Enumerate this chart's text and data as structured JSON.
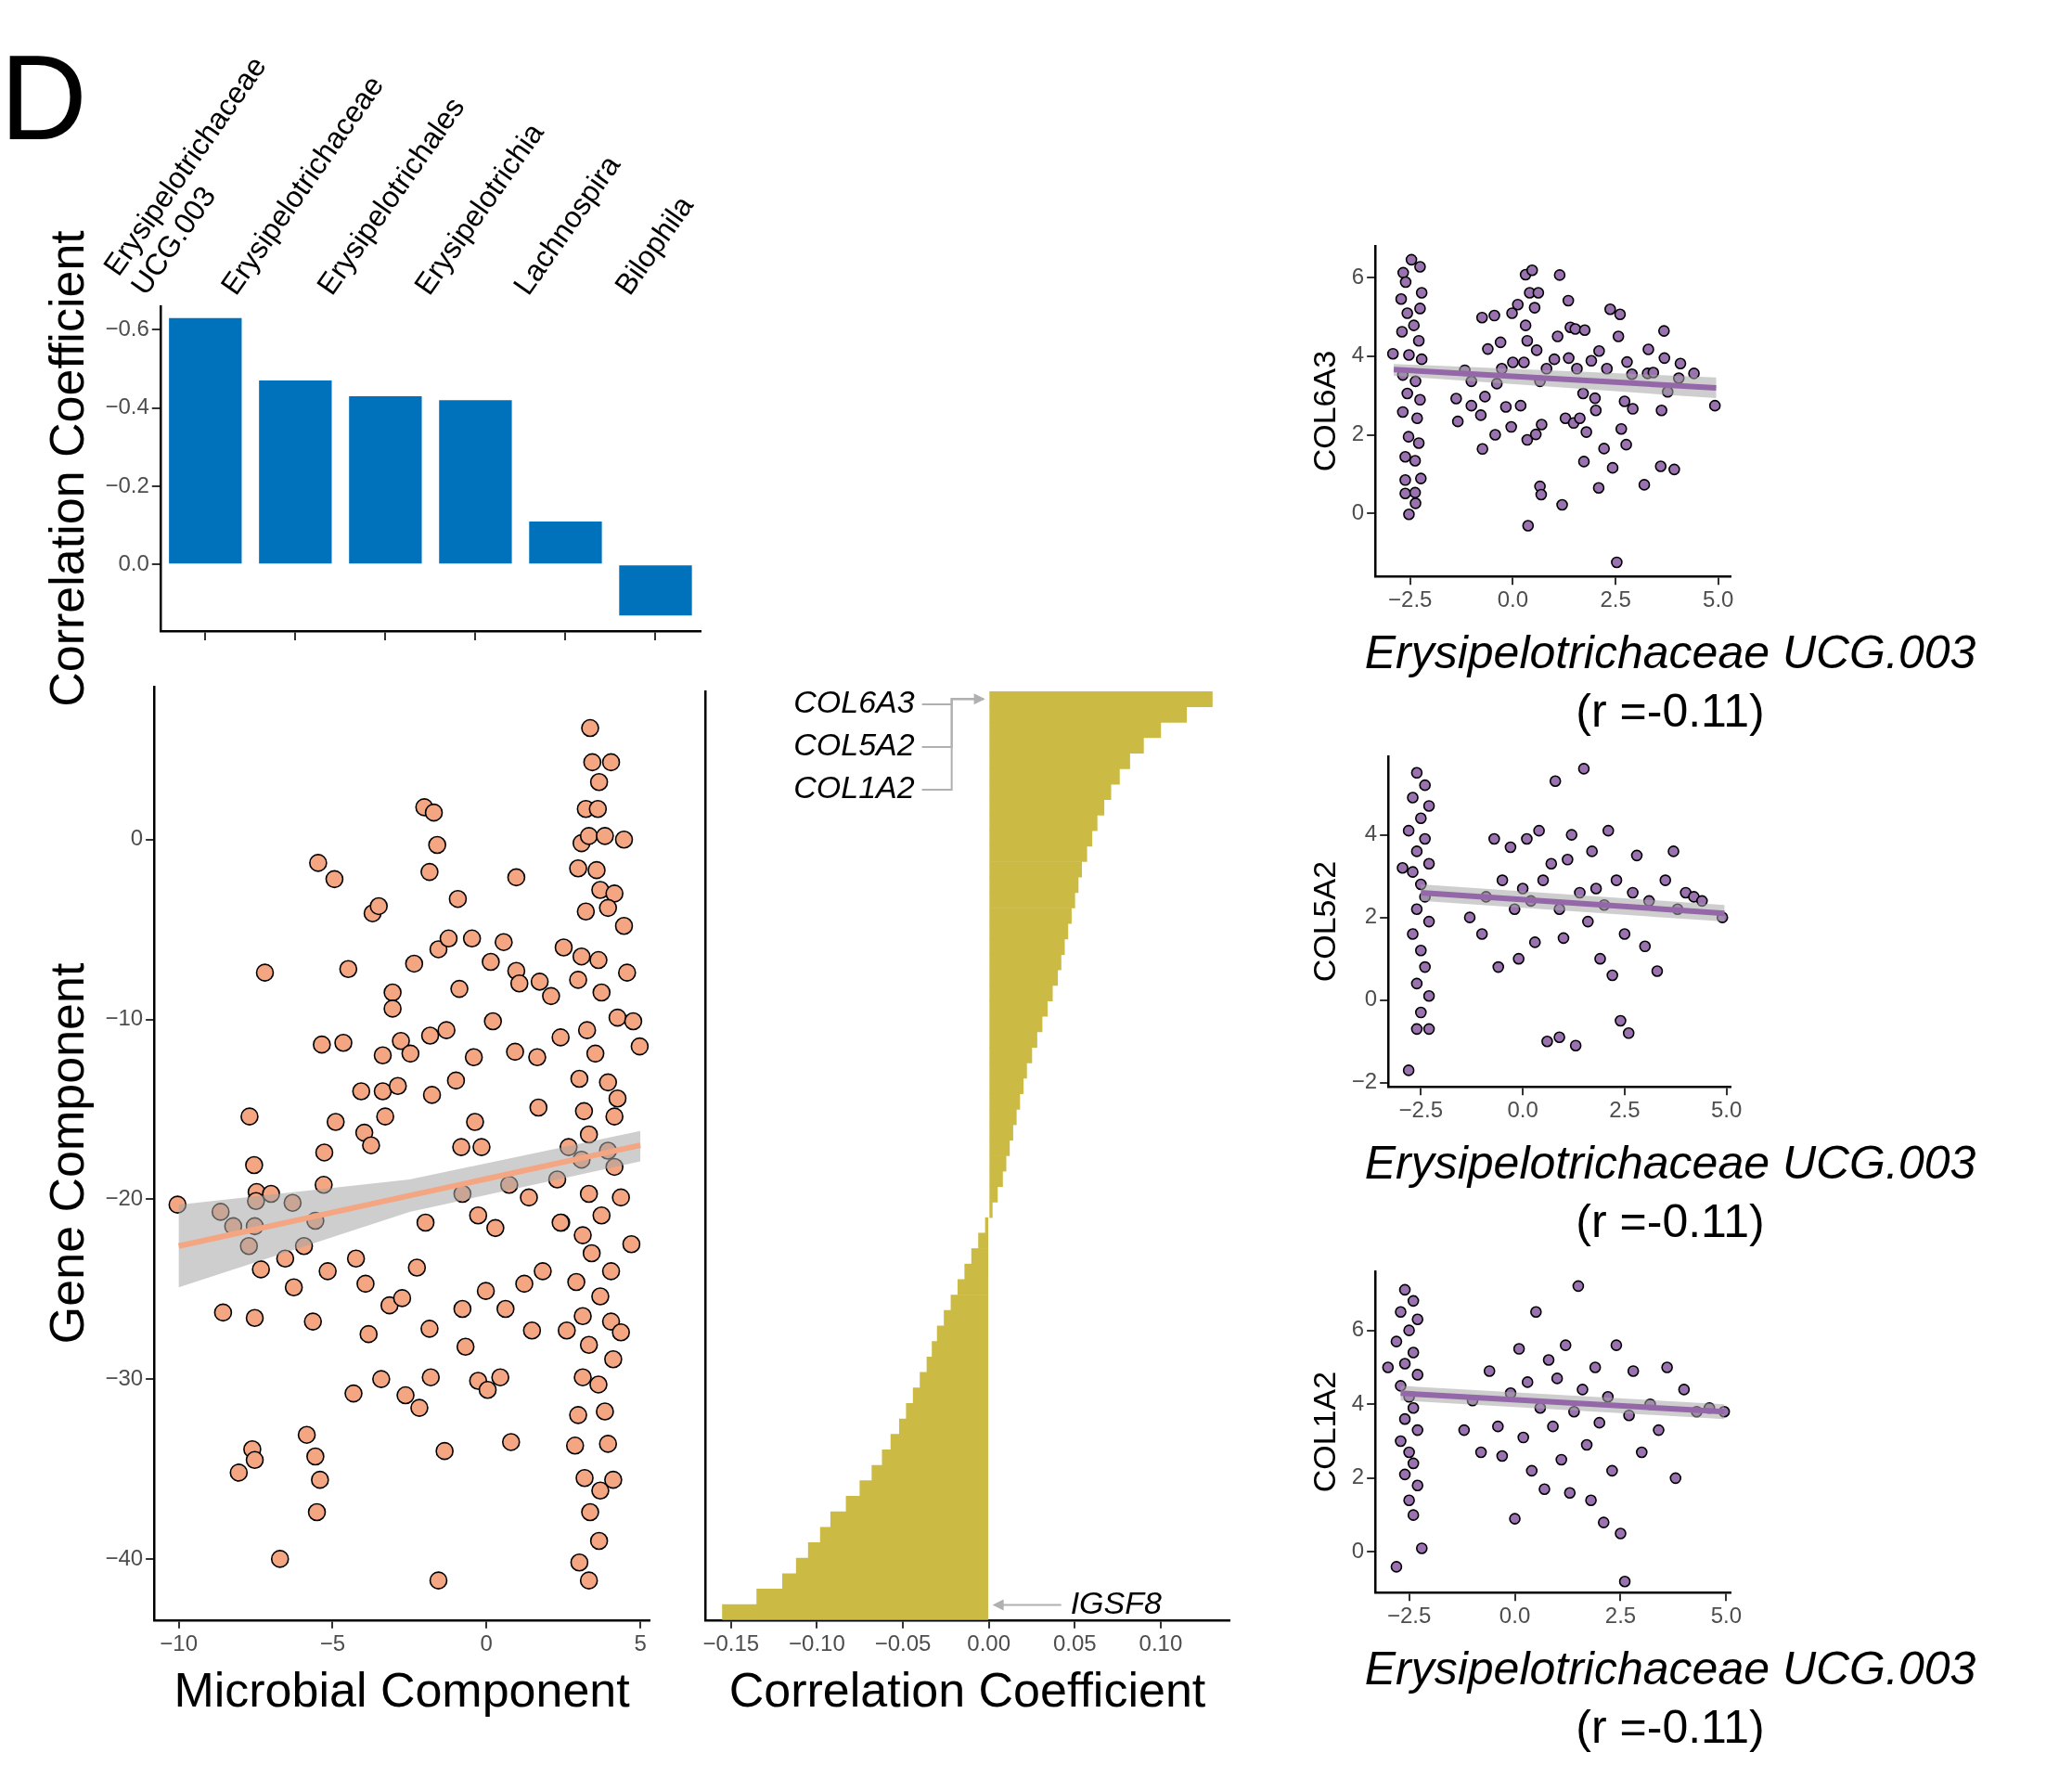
{
  "chart_data": [
    {
      "type": "bar",
      "ylabel": "Correlation Coefficient",
      "annotations": [
        "D"
      ],
      "categories": [
        "Erysipelotrichaceae UCG.003",
        "Erysipelotrichaceae",
        "Erysipelotrichales",
        "Erysipelotrichia",
        "Lachnospira",
        "Bilophila"
      ],
      "values": [
        -0.63,
        -0.47,
        -0.43,
        -0.42,
        -0.11,
        0.13
      ],
      "color": "#0072bb",
      "ylim": [
        0.17,
        -0.66
      ],
      "yticks": [
        {
          "value": -0.6,
          "label": "−0.6"
        },
        {
          "value": -0.4,
          "label": "−0.4"
        },
        {
          "value": -0.2,
          "label": "−0.2"
        },
        {
          "value": 0,
          "label": "0.0"
        }
      ]
    },
    {
      "type": "scatter",
      "xlabel": "Microbial Component",
      "ylabel": "Gene Component",
      "marker": "circle",
      "xlim": [
        -10.8,
        5.3
      ],
      "ylim": [
        -43.4,
        8.5
      ],
      "xticks": [
        {
          "value": -10,
          "label": "−10"
        },
        {
          "value": -5,
          "label": "−5"
        },
        0,
        5
      ],
      "yticks": [
        {
          "value": -40,
          "label": "−40"
        },
        {
          "value": -30,
          "label": "−30"
        },
        {
          "value": -20,
          "label": "−20"
        },
        {
          "value": -10,
          "label": "−10"
        },
        0
      ],
      "series": [
        {
          "color": "#f4a582",
          "x": [
            -10.04,
            -8.64,
            -8.23,
            -8.56,
            -8.05,
            -7.61,
            -7.53,
            -7.7,
            -7.55,
            -7.47,
            -7.49,
            -7.53,
            -7.72,
            -7.33,
            -7.53,
            -7.2,
            -7.0,
            -6.71,
            -6.54,
            -6.3,
            -6.26,
            -5.93,
            -5.84,
            -5.64,
            -5.56,
            -5.51,
            -5.41,
            -5.47,
            -4.94,
            -5.35,
            -4.65,
            -4.9,
            -5.27,
            -5.29,
            -5.16,
            -5.56,
            -4.49,
            -4.32,
            -4.24,
            -4.07,
            -3.97,
            -3.93,
            -3.83,
            -3.75,
            -3.7,
            -3.5,
            -3.42,
            -3.37,
            -3.37,
            -3.29,
            -3.05,
            -3.05,
            -3.15,
            -2.88,
            -2.78,
            -2.74,
            -2.63,
            -2.47,
            -2.35,
            -2.26,
            -2.18,
            -2.02,
            -1.71,
            -1.6,
            -1.85,
            -1.56,
            -1.83,
            -1.77,
            -1.98,
            -1.85,
            -1.81,
            -1.56,
            -1.36,
            -1.3,
            -1.23,
            -0.99,
            -0.93,
            -0.88,
            -0.82,
            -0.78,
            -0.78,
            -0.68,
            -0.47,
            -0.41,
            -0.37,
            -0.27,
            -0.27,
            -0.16,
            -0.02,
            0.04,
            0.14,
            0.21,
            0.29,
            0.45,
            0.56,
            0.62,
            0.74,
            0.8,
            0.97,
            0.97,
            0.93,
            1.07,
            1.23,
            1.38,
            1.48,
            1.65,
            1.69,
            1.73,
            1.83,
            2.1,
            2.41,
            2.51,
            2.43,
            2.61,
            3.37,
            3.44,
            4.05,
            3.66,
            3.23,
            3.62,
            3.09,
            3.33,
            3.85,
            4.47,
            2.98,
            3.58,
            3.7,
            4.16,
            3.23,
            3.95,
            4.47,
            3.09,
            3.64,
            4.57,
            2.98,
            3.74,
            4.26,
            4.77,
            3.27,
            4.98,
            3.54,
            3.02,
            3.95,
            4.26,
            3.17,
            4.16,
            3.33,
            3.95,
            2.67,
            3.09,
            4.16,
            2.3,
            4.37,
            3.33,
            3.74,
            2.41,
            3.13,
            4.71,
            3.42,
            4.05,
            2.92,
            3.7,
            3.13,
            4.05,
            4.37,
            3.33,
            4.12,
            3.13,
            3.64,
            2.98,
            3.85,
            2.88,
            3.95,
            3.19,
            4.12,
            3.7,
            3.37,
            3.66,
            3.02,
            3.33
          ],
          "values": [
            -20.3,
            -20.7,
            -21.5,
            -26.3,
            -35.2,
            -33.9,
            -34.5,
            -15.4,
            -18.1,
            -19.6,
            -20.1,
            -21.5,
            -22.6,
            -23.9,
            -26.6,
            -7.4,
            -19.7,
            -40.0,
            -23.3,
            -20.2,
            -24.9,
            -22.6,
            -33.1,
            -26.8,
            -34.3,
            -37.4,
            -35.6,
            -1.3,
            -2.2,
            -11.4,
            -11.3,
            -15.7,
            -17.4,
            -19.2,
            -24.0,
            -21.2,
            -7.2,
            -30.8,
            -23.3,
            -14.0,
            -16.3,
            -24.7,
            -27.5,
            -17.0,
            -4.1,
            -3.7,
            -30.0,
            -12.0,
            -14.0,
            -15.4,
            -8.5,
            -9.4,
            -25.9,
            -13.7,
            -11.2,
            -25.5,
            -30.9,
            -11.9,
            -6.9,
            -23.8,
            -31.6,
            1.8,
            1.5,
            -0.3,
            -1.8,
            -6.1,
            -10.9,
            -14.2,
            -21.3,
            -27.2,
            -29.9,
            -41.2,
            -34.0,
            -10.6,
            -5.5,
            -13.4,
            -3.3,
            -8.3,
            -17.1,
            -19.7,
            -26.1,
            -28.2,
            -5.5,
            -12.1,
            -15.7,
            -20.9,
            -30.1,
            -17.1,
            -25.1,
            -30.6,
            -6.8,
            -10.1,
            -21.6,
            -29.9,
            -5.7,
            -26.1,
            -19.2,
            -33.5,
            -2.1,
            -7.3,
            -11.8,
            -8.0,
            -24.7,
            -19.9,
            -27.3,
            -12.1,
            -14.9,
            -7.9,
            -24.0,
            -8.7,
            -11.0,
            -6.0,
            -21.3,
            -27.3,
            6.2,
            4.3,
            4.3,
            3.2,
            1.7,
            1.7,
            -0.2,
            0.2,
            0.2,
            0.0,
            -1.6,
            -1.7,
            -2.8,
            -3.0,
            -4.0,
            -3.8,
            -4.8,
            -6.5,
            -6.7,
            -7.4,
            -7.8,
            -8.5,
            -9.9,
            -10.1,
            -10.6,
            -11.5,
            -11.9,
            -13.3,
            -13.5,
            -14.4,
            -15.1,
            -15.4,
            -16.4,
            -17.3,
            -17.1,
            -17.8,
            -18.2,
            -18.9,
            -19.9,
            -19.7,
            -20.9,
            -21.3,
            -22.0,
            -22.5,
            -23.0,
            -24.0,
            -24.6,
            -25.4,
            -26.5,
            -26.8,
            -27.4,
            -28.1,
            -28.9,
            -29.9,
            -30.3,
            -32.0,
            -31.8,
            -33.7,
            -33.6,
            -35.5,
            -35.6,
            -36.2,
            -37.4,
            -39.0,
            -40.2,
            -41.2
          ]
        },
        {
          "type": "line",
          "marker": "none",
          "color": "#f4a582",
          "x": [
            -10,
            -2.5,
            5
          ],
          "values": [
            -22.6,
            -19.8,
            -17.0
          ],
          "lower": [
            -24.9,
            -20.7,
            -17.9
          ],
          "upper": [
            -20.3,
            -18.9,
            -16.2
          ]
        }
      ]
    },
    {
      "type": "bar",
      "orientation": "horizontal",
      "xlabel": "Correlation Coefficient",
      "annotations": [
        "COL6A3",
        "COL5A2",
        "COL1A2",
        "IGSF8"
      ],
      "color": "#cbbb45",
      "xlim": [
        -0.165,
        0.14
      ],
      "xticks": [
        {
          "value": -0.15,
          "label": "−0.15"
        },
        {
          "value": -0.1,
          "label": "−0.10"
        },
        {
          "value": -0.05,
          "label": "−0.05"
        },
        {
          "value": 0,
          "label": "0.00"
        },
        {
          "value": 0.05,
          "label": "0.05"
        },
        {
          "value": 0.1,
          "label": "0.10"
        }
      ],
      "categories": [
        null,
        null,
        null,
        null,
        null,
        null,
        null,
        null,
        null,
        null,
        null,
        null,
        null,
        null,
        null,
        null,
        null,
        null,
        null,
        null,
        null,
        null,
        null,
        null,
        null,
        null,
        null,
        null,
        null,
        null,
        null,
        null,
        null,
        null,
        null,
        null,
        null,
        null,
        null,
        null,
        null,
        null,
        null,
        null,
        null,
        null,
        null,
        null,
        null,
        null,
        null,
        null,
        null,
        null,
        null,
        null,
        null,
        null,
        null,
        null
      ],
      "values": [
        0.13,
        0.115,
        0.1,
        0.09,
        0.082,
        0.076,
        0.071,
        0.067,
        0.063,
        0.06,
        0.057,
        0.054,
        0.052,
        0.05,
        0.048,
        0.046,
        0.044,
        0.042,
        0.04,
        0.037,
        0.034,
        0.031,
        0.028,
        0.025,
        0.022,
        0.02,
        0.018,
        0.016,
        0.014,
        0.012,
        0.01,
        0.008,
        0.005,
        0.002,
        -0.002,
        -0.006,
        -0.01,
        -0.014,
        -0.018,
        -0.022,
        -0.026,
        -0.03,
        -0.033,
        -0.036,
        -0.04,
        -0.044,
        -0.048,
        -0.052,
        -0.057,
        -0.062,
        -0.068,
        -0.075,
        -0.083,
        -0.092,
        -0.098,
        -0.105,
        -0.112,
        -0.12,
        -0.135,
        -0.155
      ]
    },
    {
      "type": "scatter",
      "xlabel": "Erysipelotrichaceae UCG.003\n(r =-0.11)",
      "ylabel": "COL6A3",
      "marker": "circle",
      "xlim": [
        -3.35,
        5.3
      ],
      "ylim": [
        -1.6,
        6.8
      ],
      "xticks": [
        {
          "value": -2.5,
          "label": "−2.5"
        },
        {
          "value": 0,
          "label": "0.0"
        },
        2.5,
        {
          "value": 5,
          "label": "5.0"
        }
      ],
      "yticks": [
        0,
        2,
        4,
        6
      ],
      "series": [
        {
          "color": "#9b72b0",
          "x": [
            -2.47,
            -2.67,
            -2.26,
            -2.61,
            -2.22,
            -2.72,
            -2.26,
            -2.57,
            -2.41,
            -2.7,
            -2.29,
            -2.92,
            -2.53,
            -2.22,
            -2.68,
            -2.37,
            -2.57,
            -2.26,
            -2.68,
            -2.33,
            -2.54,
            -2.29,
            -2.62,
            -2.38,
            -2.62,
            -2.24,
            -2.62,
            -2.38,
            -2.37,
            -2.53,
            -1.38,
            -1.34,
            -1.17,
            -1.01,
            -1.01,
            -0.75,
            -0.78,
            -0.74,
            -0.61,
            -0.68,
            -0.45,
            -0.43,
            -0.39,
            -0.3,
            -0.27,
            -0.17,
            -0.02,
            -0.04,
            0.0,
            0.12,
            0.19,
            0.31,
            0.47,
            0.35,
            0.37,
            0.41,
            0.31,
            0.27,
            0.35,
            0.53,
            0.62,
            0.56,
            0.58,
            0.66,
            0.66,
            0.69,
            0.7,
            0.82,
            1.01,
            1.09,
            1.14,
            1.2,
            1.28,
            1.35,
            1.36,
            1.4,
            1.48,
            1.56,
            1.52,
            1.63,
            1.71,
            1.75,
            1.73,
            1.79,
            1.91,
            2.0,
            2.02,
            2.09,
            2.1,
            2.22,
            2.29,
            2.37,
            2.43,
            2.53,
            2.57,
            2.61,
            2.64,
            2.72,
            2.76,
            2.78,
            2.92,
            2.9,
            3.2,
            3.28,
            3.3,
            3.42,
            3.62,
            3.6,
            3.68,
            3.69,
            3.77,
            3.93,
            4.04,
            4.08,
            4.41,
            4.92
          ],
          "values": [
            6.45,
            6.12,
            6.27,
            5.88,
            5.61,
            5.45,
            5.21,
            5.09,
            4.78,
            4.62,
            4.39,
            4.06,
            4.03,
            3.92,
            3.52,
            3.36,
            3.05,
            2.89,
            2.58,
            2.42,
            1.95,
            1.79,
            1.44,
            1.34,
            0.85,
            0.89,
            0.51,
            0.53,
            0.26,
            -0.02,
            2.92,
            2.34,
            3.64,
            3.36,
            2.74,
            4.98,
            2.5,
            1.64,
            4.18,
            2.97,
            5.03,
            2.0,
            3.3,
            4.35,
            3.68,
            2.71,
            5.09,
            2.2,
            3.84,
            5.31,
            2.74,
            6.07,
            6.18,
            1.87,
            -0.31,
            5.61,
            4.78,
            3.84,
            4.39,
            5.23,
            5.61,
            2.01,
            4.15,
            3.36,
            0.69,
            0.48,
            2.26,
            3.68,
            3.92,
            4.5,
            6.06,
            0.22,
            2.42,
            5.41,
            3.95,
            4.73,
            2.3,
            3.68,
            4.69,
            2.42,
            3.05,
            4.66,
            1.32,
            2.07,
            3.88,
            2.93,
            2.62,
            0.65,
            4.13,
            1.65,
            3.68,
            5.19,
            1.16,
            -1.24,
            4.5,
            5.06,
            2.15,
            2.85,
            1.75,
            3.85,
            2.66,
            3.54,
            0.73,
            3.56,
            4.17,
            3.58,
            2.62,
            1.2,
            4.64,
            3.95,
            3.09,
            1.12,
            3.44,
            3.81,
            3.56,
            2.74
          ]
        },
        {
          "type": "line",
          "marker": "none",
          "color": "#9467a9",
          "x": [
            -2.9,
            4.95
          ],
          "values": [
            3.66,
            3.19
          ],
          "lower": [
            3.5,
            2.93
          ],
          "upper": [
            3.8,
            3.46
          ]
        }
      ]
    },
    {
      "type": "scatter",
      "xlabel": "Erysipelotrichaceae UCG.003\n(r =-0.11)",
      "ylabel": "COL5A2",
      "marker": "circle",
      "xlim": [
        -3.3,
        5.1
      ],
      "ylim": [
        -2.1,
        5.9
      ],
      "xticks": [
        {
          "value": -2.5,
          "label": "−2.5"
        },
        {
          "value": 0,
          "label": "0.0"
        },
        2.5,
        {
          "value": 5,
          "label": "5.0"
        }
      ],
      "yticks": [
        {
          "value": -2,
          "label": "−2"
        },
        0,
        2,
        4
      ],
      "series": [
        {
          "color": "#9b72b0",
          "x": [
            -2.6,
            -2.4,
            -2.7,
            -2.3,
            -2.5,
            -2.8,
            -2.4,
            -2.6,
            -2.3,
            -2.7,
            -2.5,
            -2.4,
            -2.6,
            -2.3,
            -2.7,
            -2.5,
            -2.4,
            -2.6,
            -2.3,
            -2.5,
            -2.6,
            -2.3,
            -2.8,
            -2.95,
            -1.3,
            -1.0,
            -0.9,
            -0.7,
            -0.6,
            -0.5,
            -0.3,
            -0.2,
            -0.1,
            0.0,
            0.1,
            0.2,
            0.3,
            0.4,
            0.5,
            0.6,
            0.7,
            0.8,
            0.9,
            0.9,
            1.0,
            1.1,
            1.2,
            1.3,
            1.4,
            1.5,
            1.6,
            1.7,
            1.8,
            1.9,
            2.0,
            2.1,
            2.2,
            2.3,
            2.4,
            2.5,
            2.6,
            2.7,
            2.8,
            3.0,
            3.1,
            3.3,
            3.5,
            3.7,
            3.8,
            4.0,
            4.2,
            4.4,
            4.9
          ],
          "values": [
            5.5,
            5.2,
            4.9,
            4.7,
            4.4,
            4.1,
            3.9,
            3.6,
            3.3,
            3.1,
            2.8,
            2.5,
            2.2,
            1.9,
            1.6,
            1.2,
            0.8,
            0.4,
            0.1,
            -0.3,
            -0.7,
            -0.7,
            -1.7,
            3.2,
            2.0,
            1.6,
            2.5,
            3.9,
            0.8,
            2.9,
            3.7,
            2.2,
            1.0,
            2.7,
            3.9,
            2.4,
            1.4,
            4.1,
            2.9,
            -1.0,
            3.3,
            5.3,
            -0.9,
            2.2,
            1.5,
            3.4,
            4.0,
            -1.1,
            2.6,
            5.6,
            1.9,
            3.6,
            2.7,
            1.0,
            2.3,
            4.1,
            0.6,
            2.9,
            -0.5,
            1.6,
            -0.8,
            2.6,
            3.5,
            1.3,
            2.4,
            0.7,
            2.9,
            3.6,
            2.2,
            2.6,
            2.5,
            2.4,
            2.0
          ]
        },
        {
          "type": "line",
          "marker": "none",
          "color": "#9467a9",
          "x": [
            -2.5,
            4.95
          ],
          "values": [
            2.6,
            2.1
          ],
          "lower": [
            2.4,
            1.9
          ],
          "upper": [
            2.8,
            2.3
          ]
        }
      ]
    },
    {
      "type": "scatter",
      "xlabel": "Erysipelotrichaceae UCG.003\n(r =-0.11)",
      "ylabel": "COL1A2",
      "marker": "circle",
      "xlim": [
        -3.3,
        5.1
      ],
      "ylim": [
        -1.1,
        7.6
      ],
      "xticks": [
        {
          "value": -2.5,
          "label": "−2.5"
        },
        {
          "value": 0,
          "label": "0.0"
        },
        2.5,
        {
          "value": 5,
          "label": "5.0"
        }
      ],
      "yticks": [
        0,
        2,
        4,
        6
      ],
      "series": [
        {
          "color": "#9b72b0",
          "x": [
            -2.6,
            -2.4,
            -2.7,
            -2.3,
            -2.5,
            -2.8,
            -2.4,
            -2.6,
            -3.0,
            -2.3,
            -2.7,
            -2.5,
            -2.4,
            -2.6,
            -2.3,
            -2.7,
            -2.5,
            -2.4,
            -2.6,
            -2.3,
            -2.5,
            -2.4,
            -2.2,
            -2.8,
            -1.2,
            -1.0,
            -0.8,
            -0.6,
            -0.4,
            -0.3,
            -0.1,
            0.0,
            0.1,
            0.2,
            0.3,
            0.4,
            0.5,
            0.6,
            0.7,
            0.8,
            0.9,
            1.0,
            1.1,
            1.2,
            1.3,
            1.4,
            1.5,
            1.6,
            1.7,
            1.8,
            1.9,
            2.0,
            2.1,
            2.2,
            2.3,
            2.4,
            2.5,
            2.6,
            2.7,
            2.8,
            3.0,
            3.2,
            3.4,
            3.6,
            3.8,
            4.0,
            4.3,
            4.6,
            4.95
          ],
          "values": [
            7.1,
            6.8,
            6.5,
            6.3,
            6.0,
            5.7,
            5.4,
            5.1,
            5.0,
            4.8,
            4.5,
            4.2,
            3.9,
            3.6,
            3.3,
            3.0,
            2.7,
            2.4,
            2.1,
            1.8,
            1.4,
            1.0,
            0.1,
            -0.4,
            3.3,
            4.1,
            2.7,
            4.9,
            3.4,
            2.6,
            4.3,
            0.9,
            5.5,
            3.1,
            4.6,
            2.2,
            6.5,
            3.9,
            1.7,
            5.2,
            3.4,
            4.7,
            2.5,
            5.6,
            1.6,
            3.8,
            7.2,
            4.4,
            2.9,
            1.4,
            5.0,
            3.5,
            0.8,
            4.2,
            2.2,
            5.6,
            0.5,
            -0.8,
            3.7,
            4.9,
            2.7,
            4.0,
            3.3,
            5.0,
            2.0,
            4.4,
            3.8,
            3.9,
            3.8
          ]
        },
        {
          "type": "line",
          "marker": "none",
          "color": "#9467a9",
          "x": [
            -2.7,
            4.95
          ],
          "values": [
            4.3,
            3.8
          ],
          "lower": [
            4.1,
            3.6
          ],
          "upper": [
            4.5,
            4.0
          ]
        }
      ]
    }
  ]
}
